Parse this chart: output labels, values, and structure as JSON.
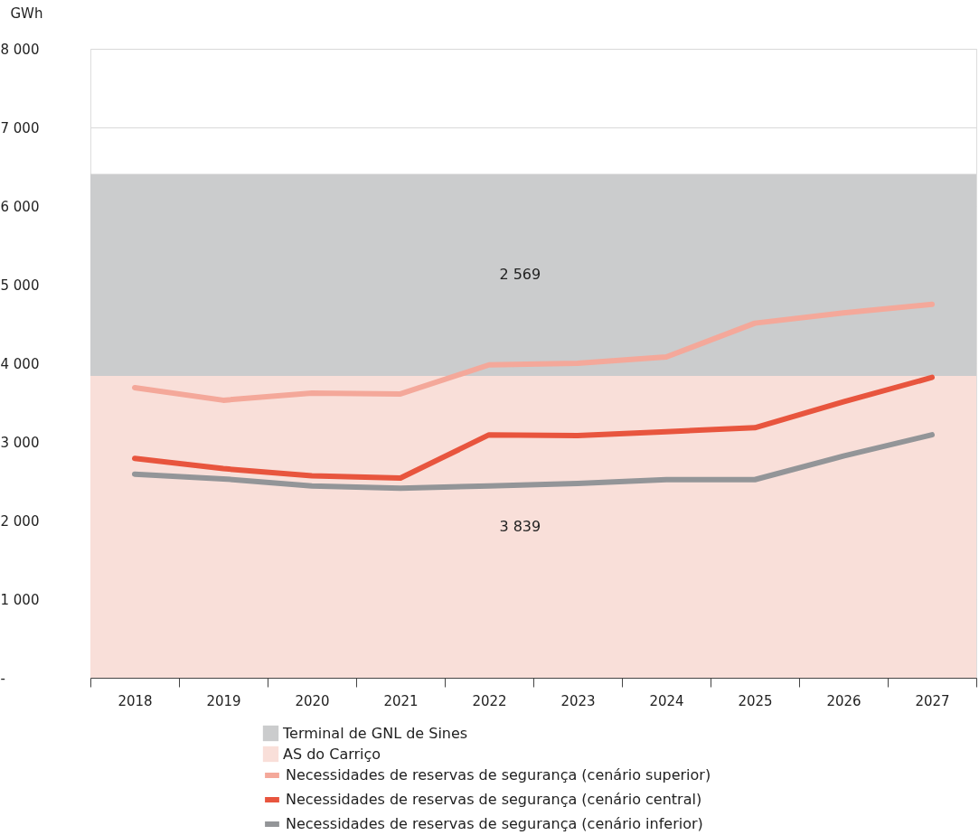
{
  "chart_data": {
    "type": "line",
    "ylabel": "GWh",
    "categories": [
      "2018",
      "2019",
      "2020",
      "2021",
      "2022",
      "2023",
      "2024",
      "2025",
      "2026",
      "2027"
    ],
    "series": [
      {
        "name": "Necessidades de reservas de segurança (cenário superior)",
        "color": "#f4a89a",
        "values": [
          3690,
          3530,
          3620,
          3610,
          3980,
          4000,
          4080,
          4510,
          4640,
          4750
        ]
      },
      {
        "name": "Necessidades de reservas de segurança (cenário central)",
        "color": "#e8553e",
        "values": [
          2790,
          2660,
          2570,
          2540,
          3090,
          3080,
          3130,
          3180,
          3510,
          3820
        ]
      },
      {
        "name": "Necessidades de reservas de segurança (cenário inferior)",
        "color": "#939598",
        "values": [
          2590,
          2530,
          2440,
          2410,
          2440,
          2470,
          2520,
          2520,
          2820,
          3090
        ]
      }
    ],
    "bands": [
      {
        "axis": "y",
        "from": 3839,
        "to": 6408,
        "label": "Terminal de GNL de Sines",
        "color": "#cbcccd"
      },
      {
        "axis": "y",
        "from": 0,
        "to": 3839,
        "label": "AS do Carriço",
        "color": "#f9dfd9"
      }
    ],
    "annotations": [
      "2 569",
      "3 839"
    ],
    "ylim": [
      0,
      8000
    ],
    "yticks": [
      {
        "value": 0,
        "label": "-"
      },
      {
        "value": 1000,
        "label": "1 000"
      },
      {
        "value": 2000,
        "label": "2 000"
      },
      {
        "value": 3000,
        "label": "3 000"
      },
      {
        "value": 4000,
        "label": "4 000"
      },
      {
        "value": 5000,
        "label": "5 000"
      },
      {
        "value": 6000,
        "label": "6 000"
      },
      {
        "value": 7000,
        "label": "7 000"
      },
      {
        "value": 8000,
        "label": "8 000"
      }
    ],
    "grid": "y",
    "legend": "bottom",
    "line_style": "solid",
    "marker": "none"
  }
}
